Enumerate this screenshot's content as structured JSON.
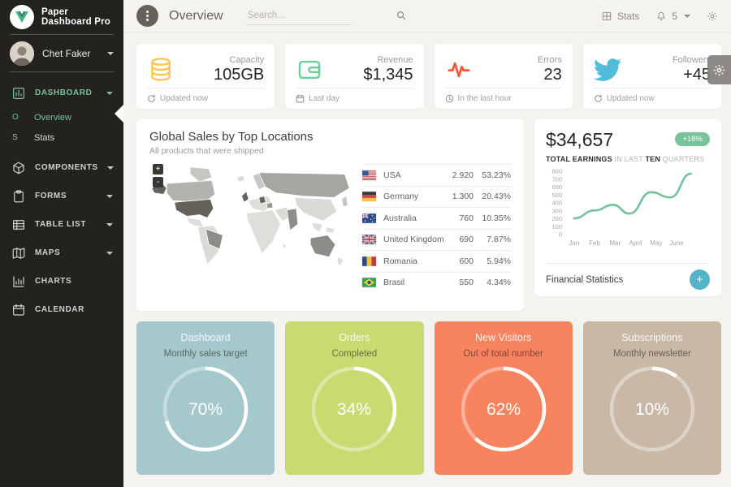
{
  "sidebar": {
    "logo_text": "Paper Dashboard Pro",
    "user": {
      "name": "Chet Faker"
    },
    "items": [
      {
        "label": "DASHBOARD",
        "icon": "chart-bar-icon",
        "caret": true,
        "active": true
      },
      {
        "label": "COMPONENTS",
        "icon": "cube-icon",
        "caret": true,
        "active": false
      },
      {
        "label": "FORMS",
        "icon": "clipboard-icon",
        "caret": true,
        "active": false
      },
      {
        "label": "TABLE LIST",
        "icon": "table-icon",
        "caret": true,
        "active": false
      },
      {
        "label": "MAPS",
        "icon": "map-icon",
        "caret": true,
        "active": false
      },
      {
        "label": "CHARTS",
        "icon": "chart-box-icon",
        "caret": false,
        "active": false
      },
      {
        "label": "CALENDAR",
        "icon": "calendar-icon",
        "caret": false,
        "active": false
      }
    ],
    "subitems": [
      {
        "mini": "O",
        "label": "Overview",
        "active": true
      },
      {
        "mini": "S",
        "label": "Stats",
        "active": false
      }
    ]
  },
  "navbar": {
    "title": "Overview",
    "search_placeholder": "Search...",
    "stats_label": "Stats",
    "notification_count": "5"
  },
  "stat_cards": [
    {
      "label": "Capacity",
      "value": "105GB",
      "footer": "Updated now",
      "icon": "database-icon",
      "footer_icon": "refresh-icon",
      "color": "#fbc658"
    },
    {
      "label": "Revenue",
      "value": "$1,345",
      "footer": "Last day",
      "icon": "wallet-icon",
      "footer_icon": "calendar-icon",
      "color": "#6bd098"
    },
    {
      "label": "Errors",
      "value": "23",
      "footer": "In the last hour",
      "icon": "pulse-icon",
      "footer_icon": "clock-icon",
      "color": "#f5593d"
    },
    {
      "label": "Followers",
      "value": "+45",
      "footer": "Updated now",
      "icon": "twitter-icon",
      "footer_icon": "refresh-icon",
      "color": "#51bcda"
    }
  ],
  "sales_card": {
    "title": "Global Sales by Top Locations",
    "subtitle": "All products that were shipped",
    "map_controls": {
      "zoom_in": "+",
      "zoom_out": "-"
    },
    "rows": [
      {
        "flag": "usa",
        "country": "USA",
        "value": "2.920",
        "percent": "53.23%"
      },
      {
        "flag": "germany",
        "country": "Germany",
        "value": "1.300",
        "percent": "20.43%"
      },
      {
        "flag": "australia",
        "country": "Australia",
        "value": "760",
        "percent": "10.35%"
      },
      {
        "flag": "uk",
        "country": "United Kingdom",
        "value": "690",
        "percent": "7.87%"
      },
      {
        "flag": "romania",
        "country": "Romania",
        "value": "600",
        "percent": "5.94%"
      },
      {
        "flag": "brazil",
        "country": "Brasil",
        "value": "550",
        "percent": "4.34%"
      }
    ]
  },
  "earnings_card": {
    "amount": "$34,657",
    "badge": "+18%",
    "subtitle": {
      "bold1": "TOTAL EARNINGS",
      "light1": " IN LAST ",
      "bold2": "TEN",
      "light2": " QUARTERS"
    },
    "footer": "Financial Statistics",
    "plus_label": "+"
  },
  "chart_data": {
    "type": "line",
    "title": "TOTAL EARNINGS IN LAST TEN QUARTERS",
    "x_labels": [
      "Jan",
      "Feb",
      "Mar",
      "April",
      "May",
      "June"
    ],
    "points": [
      {
        "x": 0,
        "y": 205
      },
      {
        "x": 1,
        "y": 305
      },
      {
        "x": 1.9,
        "y": 375
      },
      {
        "x": 2.7,
        "y": 265
      },
      {
        "x": 3.75,
        "y": 535
      },
      {
        "x": 4.7,
        "y": 470
      },
      {
        "x": 5.7,
        "y": 770
      }
    ],
    "ylim": [
      0,
      800
    ],
    "y_ticks": [
      0,
      100,
      200,
      300,
      400,
      500,
      600,
      700,
      800
    ],
    "line_color": "#72c29c",
    "grid": false,
    "legend": false
  },
  "progress_cards": [
    {
      "title": "Dashboard",
      "subtitle": "Monthly sales target",
      "percent": 70,
      "percent_label": "70%",
      "bg": "#a4c8cc"
    },
    {
      "title": "Orders",
      "subtitle": "Completed",
      "percent": 34,
      "percent_label": "34%",
      "bg": "#c9da70"
    },
    {
      "title": "New Visitors",
      "subtitle": "Out of total number",
      "percent": 62,
      "percent_label": "62%",
      "bg": "#f7835f"
    },
    {
      "title": "Subscriptions",
      "subtitle": "Monthly newsletter",
      "percent": 10,
      "percent_label": "10%",
      "bg": "#c8b8a5"
    }
  ]
}
